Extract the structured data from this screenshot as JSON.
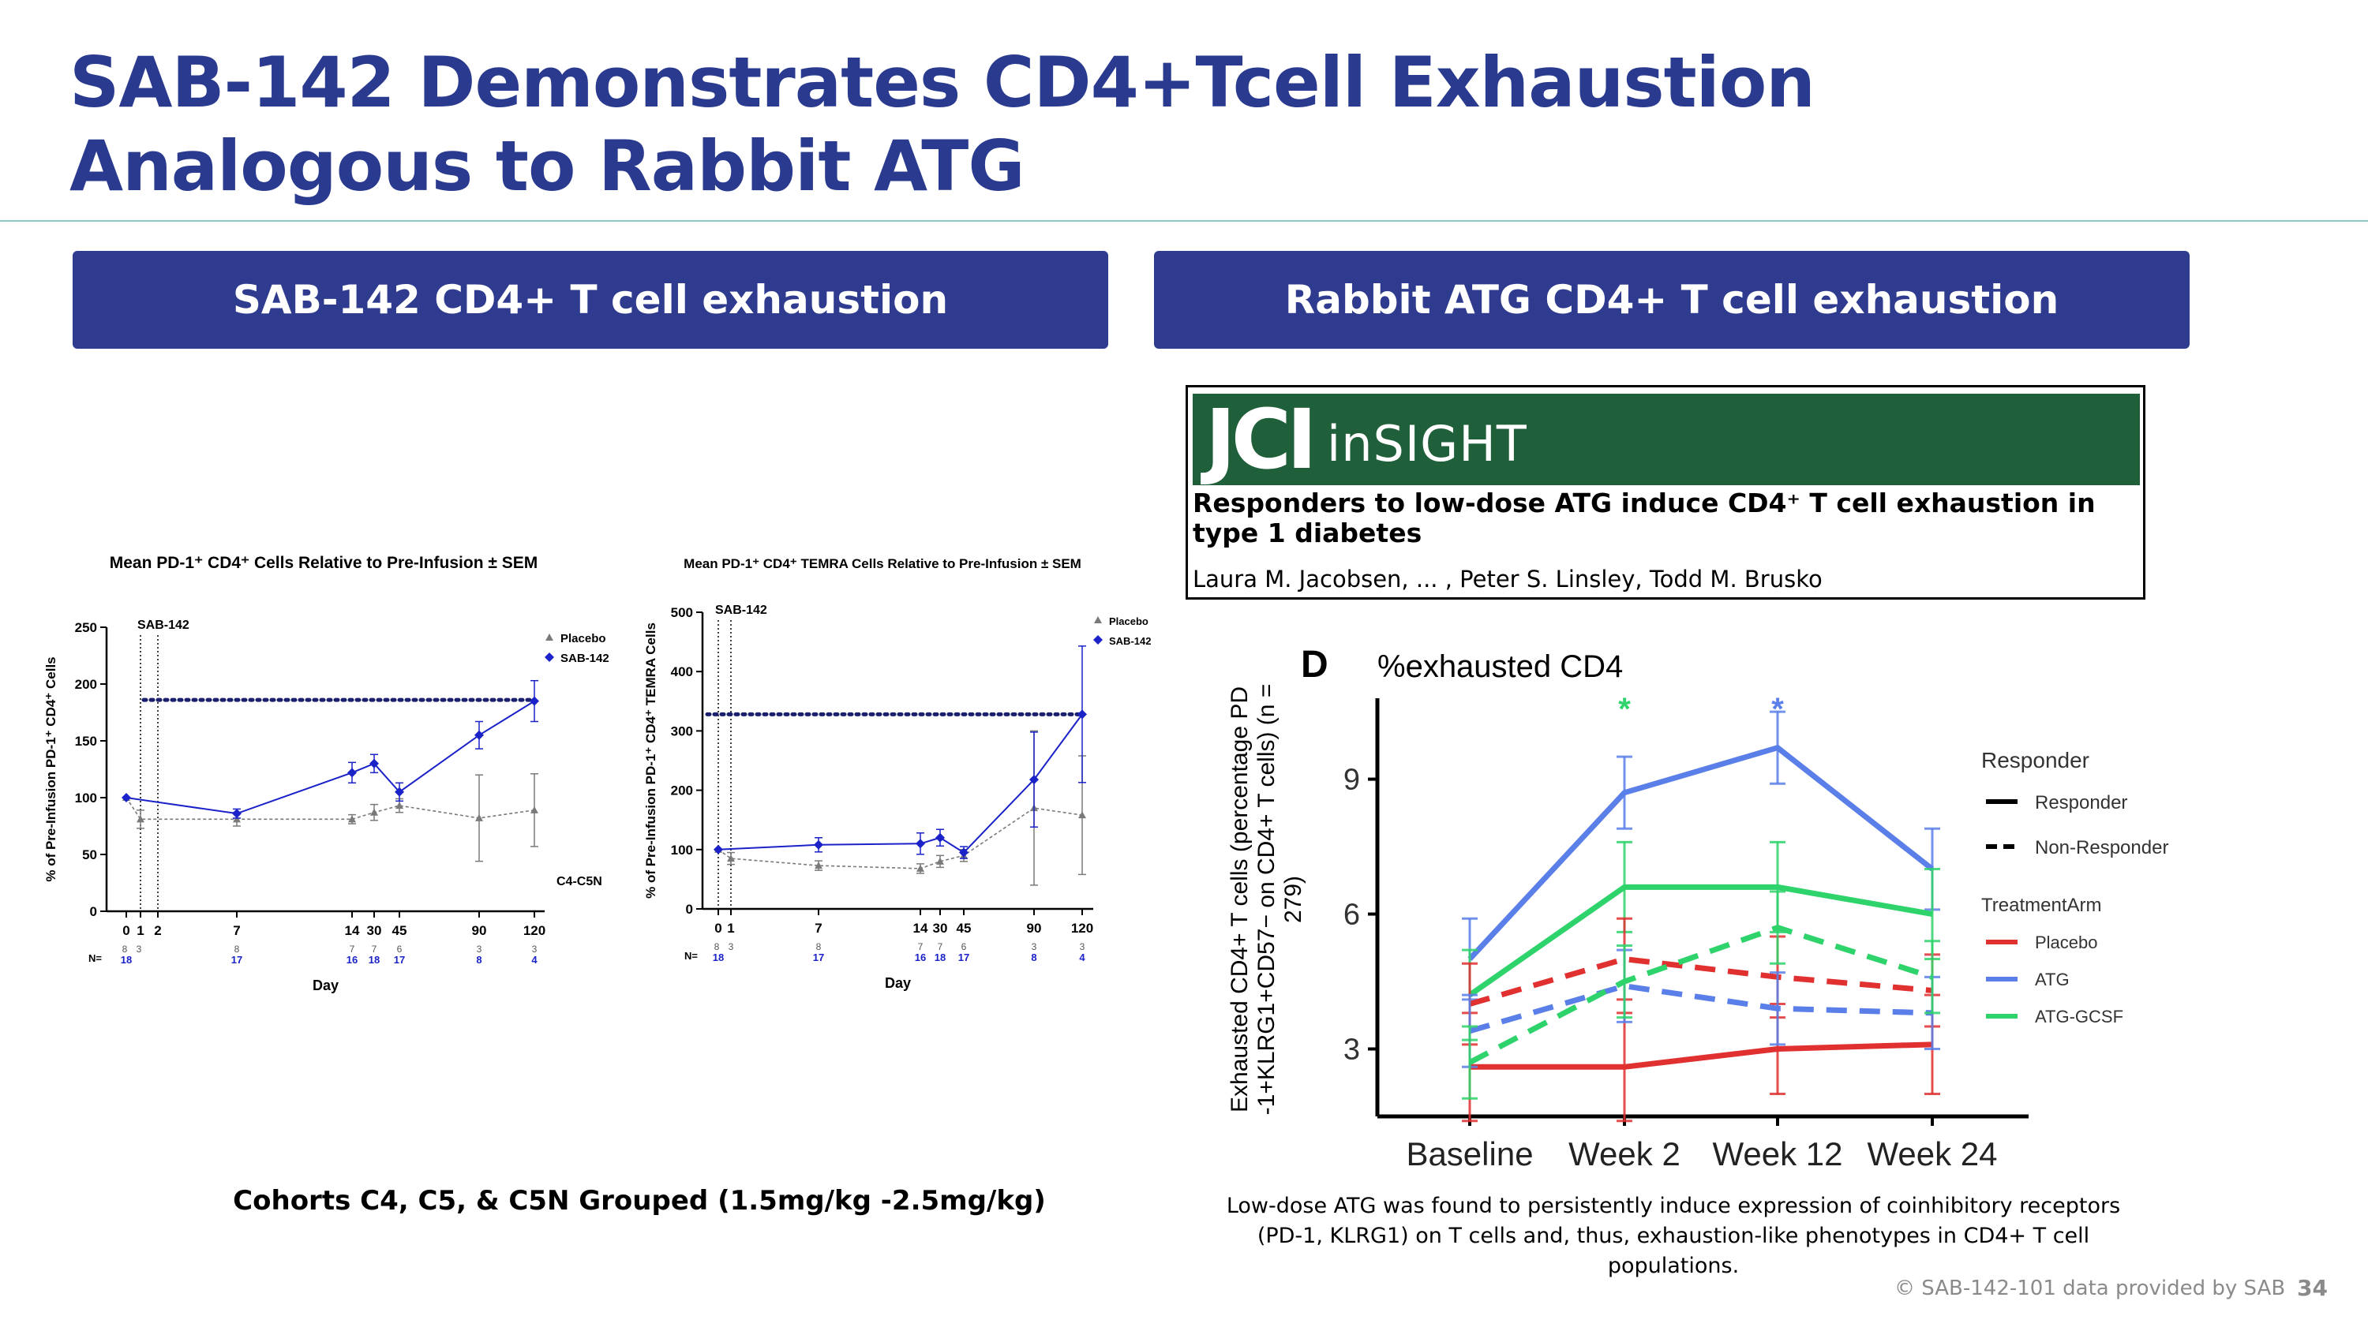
{
  "title": "SAB-142 Demonstrates CD4+Tcell Exhaustion Analogous to Rabbit ATG",
  "banners": {
    "left": "SAB-142 CD4+ T cell exhaustion",
    "right": "Rabbit ATG CD4+ T cell exhaustion"
  },
  "jci": {
    "logo": "JCI",
    "insight": "inSIGHT",
    "article_title": "Responders to low-dose ATG induce CD4⁺ T cell exhaustion in type 1 diabetes",
    "authors": "Laura M. Jacobsen, ... , Peter S. Linsley, Todd M. Brusko"
  },
  "captions": {
    "left": "Cohorts C4, C5, & C5N Grouped (1.5mg/kg -2.5mg/kg)",
    "right_line1": "Low-dose ATG was found to  persistently induce expression of coinhibitory receptors",
    "right_line2": "(PD-1, KLRG1) on T cells and, thus, exhaustion-like phenotypes in CD4+ T cell populations."
  },
  "footer": "© SAB-142-101 data provided by SAB",
  "page_number": "34",
  "colors": {
    "title": "#2a3a8f",
    "banner": "#2e3b8e",
    "sab": "#1a22c8",
    "placebo": "#7a7a7a",
    "atg": "#5b7fe8",
    "atg_gcsf": "#2ed36b",
    "placebo_red": "#e03030",
    "jci_green": "#1f5f3a"
  },
  "chart_data": [
    {
      "type": "line",
      "title": "Mean PD-1⁺ CD4⁺ Cells Relative to Pre-Infusion ± SEM",
      "xlabel": "Day",
      "ylabel": "% of Pre-Infusion PD-1⁺ CD4⁺ Cells",
      "ylim": [
        0,
        250
      ],
      "yticks": [
        "0",
        "50",
        "100",
        "150",
        "200",
        "250"
      ],
      "x_tick_labels": [
        "0",
        "1",
        "2",
        "7",
        "14",
        "30",
        "45",
        "90",
        "120"
      ],
      "dosing_marker": "SAB-142",
      "annotation": "C4-C5N",
      "reference_level": 186,
      "n_label": "N=",
      "n_placebo": [
        "8",
        "3",
        "8",
        "7",
        "7",
        "6",
        "3",
        "3"
      ],
      "n_sab": [
        "18",
        "17",
        "16",
        "18",
        "17",
        "8",
        "4"
      ],
      "legend": [
        "Placebo",
        "SAB-142"
      ],
      "series": [
        {
          "name": "Placebo",
          "points": [
            [
              0,
              100
            ],
            [
              1,
              81
            ],
            [
              7,
              81
            ],
            [
              14,
              81
            ],
            [
              30,
              87
            ],
            [
              45,
              93
            ],
            [
              90,
              82
            ],
            [
              120,
              89
            ]
          ],
          "err": [
            0,
            8,
            6,
            4,
            7,
            6,
            38,
            32
          ]
        },
        {
          "name": "SAB-142",
          "points": [
            [
              0,
              100
            ],
            [
              7,
              86
            ],
            [
              14,
              122
            ],
            [
              30,
              130
            ],
            [
              45,
              105
            ],
            [
              90,
              155
            ],
            [
              120,
              185
            ]
          ],
          "err": [
            0,
            4,
            9,
            8,
            8,
            12,
            18
          ]
        }
      ]
    },
    {
      "type": "line",
      "title": "Mean PD-1⁺ CD4⁺ TEMRA Cells Relative to Pre-Infusion ± SEM",
      "xlabel": "Day",
      "ylabel": "% of Pre-Infusion PD-1⁺ CD4⁺ TEMRA Cells",
      "ylim": [
        0,
        500
      ],
      "yticks": [
        "0",
        "100",
        "200",
        "300",
        "400",
        "500"
      ],
      "x_tick_labels": [
        "0",
        "1",
        "7",
        "14",
        "30",
        "45",
        "90",
        "120"
      ],
      "dosing_marker": "SAB-142",
      "reference_level": 328,
      "n_label": "N=",
      "n_placebo": [
        "8",
        "3",
        "8",
        "7",
        "7",
        "6",
        "3",
        "3"
      ],
      "n_sab": [
        "18",
        "17",
        "16",
        "18",
        "17",
        "8",
        "4"
      ],
      "legend": [
        "Placebo",
        "SAB-142"
      ],
      "series": [
        {
          "name": "Placebo",
          "points": [
            [
              0,
              100
            ],
            [
              1,
              85
            ],
            [
              7,
              73
            ],
            [
              14,
              68
            ],
            [
              30,
              80
            ],
            [
              45,
              90
            ],
            [
              90,
              170
            ],
            [
              120,
              158
            ]
          ],
          "err": [
            0,
            10,
            8,
            8,
            10,
            10,
            130,
            100
          ]
        },
        {
          "name": "SAB-142",
          "points": [
            [
              0,
              100
            ],
            [
              7,
              108
            ],
            [
              14,
              110
            ],
            [
              30,
              120
            ],
            [
              45,
              95
            ],
            [
              90,
              218
            ],
            [
              120,
              328
            ]
          ],
          "err": [
            0,
            12,
            18,
            14,
            10,
            80,
            115
          ]
        }
      ]
    },
    {
      "type": "line",
      "panel": "D",
      "title": "%exhausted CD4",
      "ylabel": "Exhausted CD4+ T cells (percentage PD-1+KLRG1+CD57− on CD4+ T cells) (n = 279)",
      "categories": [
        "Baseline",
        "Week 2",
        "Week 12",
        "Week 24"
      ],
      "yticks": [
        "3",
        "6",
        "9"
      ],
      "ylim": [
        1.5,
        10.8
      ],
      "significance": [
        "*",
        "*"
      ],
      "legend": {
        "responder_title": "Responder",
        "responder": "Responder",
        "non_responder": "Non-Responder",
        "arm_title": "TreatmentArm",
        "placebo": "Placebo",
        "atg": "ATG",
        "atg_gcsf": "ATG-GCSF"
      },
      "series": [
        {
          "name": "ATG Responder",
          "values": [
            5.0,
            8.7,
            9.7,
            7.0
          ],
          "err": [
            0.9,
            0.8,
            0.8,
            0.9
          ]
        },
        {
          "name": "ATG-GCSF Responder",
          "values": [
            4.2,
            6.6,
            6.6,
            6.0
          ],
          "err": [
            1.0,
            1.0,
            1.0,
            1.0
          ]
        },
        {
          "name": "Placebo Responder",
          "values": [
            2.6,
            2.6,
            3.0,
            3.1
          ],
          "err": [
            1.2,
            1.2,
            1.0,
            1.1
          ]
        },
        {
          "name": "Placebo Non-Responder",
          "values": [
            4.0,
            5.0,
            4.6,
            4.3
          ],
          "err": [
            0.9,
            0.9,
            0.9,
            0.8
          ]
        },
        {
          "name": "ATG Non-Responder",
          "values": [
            3.4,
            4.4,
            3.9,
            3.8
          ],
          "err": [
            0.8,
            0.8,
            0.8,
            0.8
          ]
        },
        {
          "name": "ATG-GCSF Non-Responder",
          "values": [
            2.7,
            4.5,
            5.7,
            4.6
          ],
          "err": [
            0.8,
            0.8,
            0.8,
            0.8
          ]
        }
      ]
    }
  ]
}
